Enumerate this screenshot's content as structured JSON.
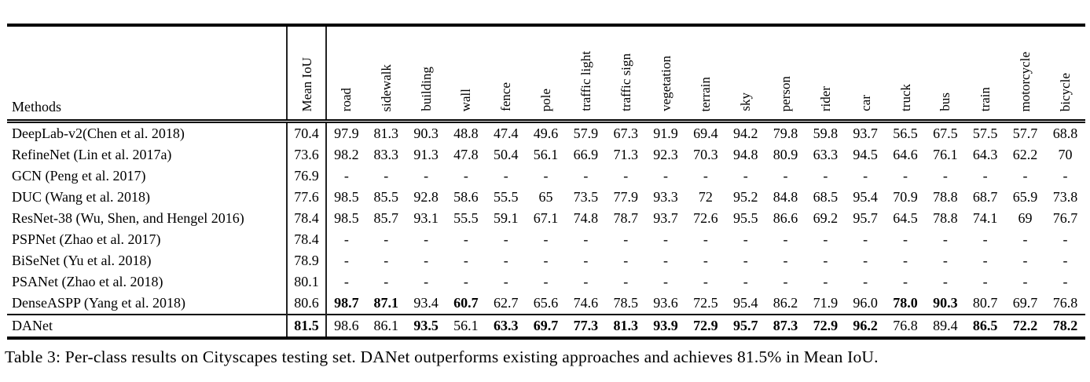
{
  "table": {
    "methods_header": "Methods",
    "columns": [
      "Mean IoU",
      "road",
      "sidewalk",
      "building",
      "wall",
      "fence",
      "pole",
      "traffic light",
      "traffic sign",
      "vegetation",
      "terrain",
      "sky",
      "person",
      "rider",
      "car",
      "truck",
      "bus",
      "train",
      "motorcycle",
      "bicycle"
    ],
    "rows": [
      {
        "method": "DeepLab-v2(Chen et al. 2018)",
        "values": [
          "70.4",
          "97.9",
          "81.3",
          "90.3",
          "48.8",
          "47.4",
          "49.6",
          "57.9",
          "67.3",
          "91.9",
          "69.4",
          "94.2",
          "79.8",
          "59.8",
          "93.7",
          "56.5",
          "67.5",
          "57.5",
          "57.7",
          "68.8"
        ],
        "bold": [],
        "separator_above": false
      },
      {
        "method": "RefineNet (Lin et al. 2017a)",
        "values": [
          "73.6",
          "98.2",
          "83.3",
          "91.3",
          "47.8",
          "50.4",
          "56.1",
          "66.9",
          "71.3",
          "92.3",
          "70.3",
          "94.8",
          "80.9",
          "63.3",
          "94.5",
          "64.6",
          "76.1",
          "64.3",
          "62.2",
          "70"
        ],
        "bold": [],
        "separator_above": false
      },
      {
        "method": "GCN (Peng et al. 2017)",
        "values": [
          "76.9",
          "-",
          "-",
          "-",
          "-",
          "-",
          "-",
          "-",
          "-",
          "-",
          "-",
          "-",
          "-",
          "-",
          "-",
          "-",
          "-",
          "-",
          "-",
          "-"
        ],
        "bold": [],
        "separator_above": false
      },
      {
        "method": "DUC (Wang et al. 2018)",
        "values": [
          "77.6",
          "98.5",
          "85.5",
          "92.8",
          "58.6",
          "55.5",
          "65",
          "73.5",
          "77.9",
          "93.3",
          "72",
          "95.2",
          "84.8",
          "68.5",
          "95.4",
          "70.9",
          "78.8",
          "68.7",
          "65.9",
          "73.8"
        ],
        "bold": [],
        "separator_above": false
      },
      {
        "method": "ResNet-38 (Wu, Shen, and Hengel 2016)",
        "values": [
          "78.4",
          "98.5",
          "85.7",
          "93.1",
          "55.5",
          "59.1",
          "67.1",
          "74.8",
          "78.7",
          "93.7",
          "72.6",
          "95.5",
          "86.6",
          "69.2",
          "95.7",
          "64.5",
          "78.8",
          "74.1",
          "69",
          "76.7"
        ],
        "bold": [],
        "separator_above": false
      },
      {
        "method": "PSPNet (Zhao et al. 2017)",
        "values": [
          "78.4",
          "-",
          "-",
          "-",
          "-",
          "-",
          "-",
          "-",
          "-",
          "-",
          "-",
          "-",
          "-",
          "-",
          "-",
          "-",
          "-",
          "-",
          "-",
          "-"
        ],
        "bold": [],
        "separator_above": false
      },
      {
        "method": "BiSeNet (Yu et al. 2018)",
        "values": [
          "78.9",
          "-",
          "-",
          "-",
          "-",
          "-",
          "-",
          "-",
          "-",
          "-",
          "-",
          "-",
          "-",
          "-",
          "-",
          "-",
          "-",
          "-",
          "-",
          "-"
        ],
        "bold": [],
        "separator_above": false
      },
      {
        "method": "PSANet (Zhao et al. 2018)",
        "values": [
          "80.1",
          "-",
          "-",
          "-",
          "-",
          "-",
          "-",
          "-",
          "-",
          "-",
          "-",
          "-",
          "-",
          "-",
          "-",
          "-",
          "-",
          "-",
          "-",
          "-"
        ],
        "bold": [],
        "separator_above": false
      },
      {
        "method": "DenseASPP (Yang et al. 2018)",
        "values": [
          "80.6",
          "98.7",
          "87.1",
          "93.4",
          "60.7",
          "62.7",
          "65.6",
          "74.6",
          "78.5",
          "93.6",
          "72.5",
          "95.4",
          "86.2",
          "71.9",
          "96.0",
          "78.0",
          "90.3",
          "80.7",
          "69.7",
          "76.8"
        ],
        "bold": [
          1,
          2,
          4,
          15,
          16
        ],
        "separator_above": false
      },
      {
        "method": "DANet",
        "values": [
          "81.5",
          "98.6",
          "86.1",
          "93.5",
          "56.1",
          "63.3",
          "69.7",
          "77.3",
          "81.3",
          "93.9",
          "72.9",
          "95.7",
          "87.3",
          "72.9",
          "96.2",
          "76.8",
          "89.4",
          "86.5",
          "72.2",
          "78.2"
        ],
        "bold": [
          0,
          3,
          5,
          6,
          7,
          8,
          9,
          10,
          11,
          12,
          13,
          14,
          17,
          18,
          19
        ],
        "separator_above": true
      }
    ]
  },
  "caption": "Table 3: Per-class results on Cityscapes testing set. DANet outperforms existing approaches and achieves 81.5% in Mean IoU."
}
